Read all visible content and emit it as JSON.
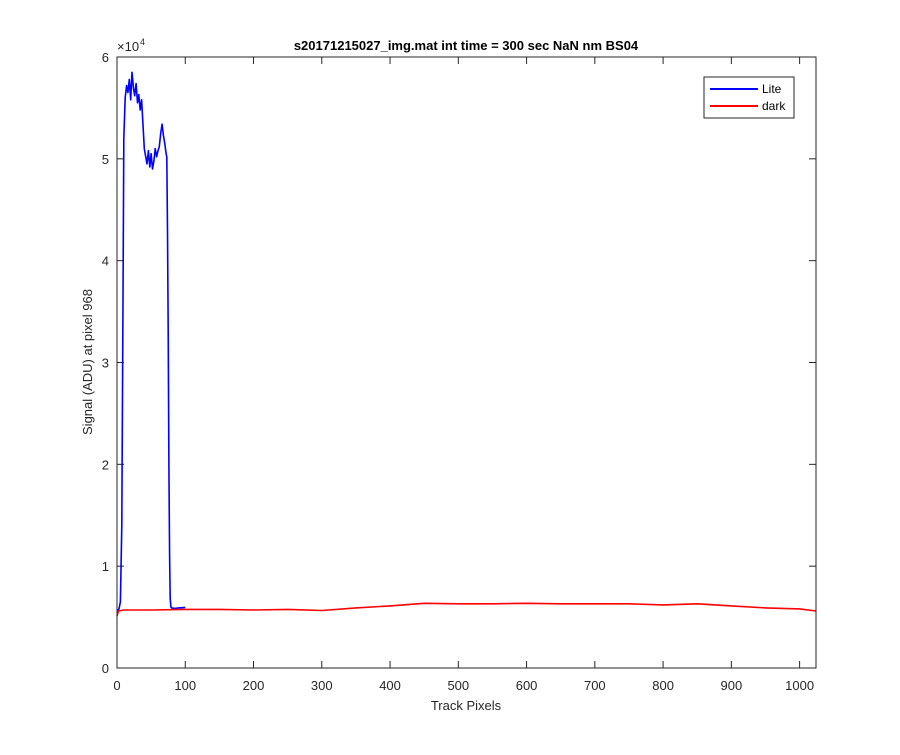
{
  "chart_data": {
    "type": "line",
    "title": "s20171215027_img.mat int time = 300 sec  NaN nm BS04",
    "xlabel": "Track Pixels",
    "ylabel": "Signal (ADU) at pixel 968",
    "xlim": [
      0,
      1024
    ],
    "ylim": [
      0,
      60000
    ],
    "xticks": [
      0,
      100,
      200,
      300,
      400,
      500,
      600,
      700,
      800,
      900,
      1000
    ],
    "yticks": [
      0,
      1,
      2,
      3,
      4,
      5,
      6
    ],
    "ytick_labels": [
      "0",
      "1",
      "2",
      "3",
      "4",
      "5",
      "6"
    ],
    "y_exponent_base": "×10",
    "y_exponent_power": "4",
    "legend_position": "top-right",
    "grid": false,
    "series": [
      {
        "name": "Lite",
        "color": "#0000ff",
        "x": [
          0,
          3,
          5,
          7,
          9,
          10,
          12,
          14,
          16,
          18,
          20,
          22,
          24,
          26,
          28,
          30,
          32,
          34,
          36,
          38,
          40,
          42,
          44,
          46,
          48,
          50,
          52,
          54,
          56,
          58,
          60,
          62,
          64,
          66,
          68,
          70,
          72,
          73,
          74,
          75,
          76,
          77,
          78,
          79,
          80,
          85,
          90,
          100
        ],
        "y": [
          5600,
          5800,
          6500,
          14000,
          38000,
          52000,
          56000,
          57200,
          56500,
          57800,
          55800,
          58500,
          57000,
          56200,
          57400,
          55500,
          56300,
          54800,
          55800,
          53500,
          51000,
          50200,
          49500,
          50800,
          49200,
          50500,
          49000,
          49800,
          51000,
          50200,
          50800,
          51200,
          52500,
          53400,
          52300,
          51500,
          50500,
          50200,
          43000,
          33000,
          20000,
          11000,
          6800,
          6000,
          5900,
          5850,
          5900,
          5950
        ]
      },
      {
        "name": "dark",
        "color": "#ff0000",
        "x": [
          0,
          2,
          10,
          50,
          100,
          150,
          200,
          250,
          300,
          350,
          400,
          450,
          500,
          550,
          600,
          650,
          700,
          750,
          800,
          850,
          900,
          950,
          1000,
          1024
        ],
        "y": [
          5100,
          5600,
          5700,
          5700,
          5750,
          5750,
          5700,
          5750,
          5650,
          5900,
          6100,
          6350,
          6300,
          6300,
          6350,
          6300,
          6300,
          6300,
          6200,
          6300,
          6100,
          5900,
          5800,
          5600
        ]
      }
    ]
  }
}
